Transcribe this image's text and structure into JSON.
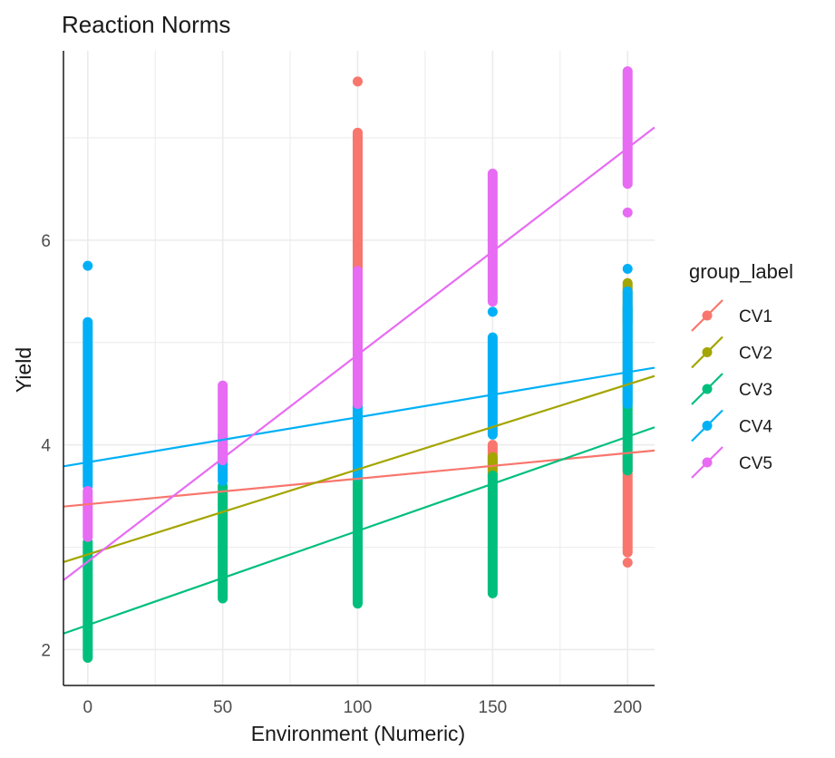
{
  "chart_data": {
    "type": "scatter",
    "title": "Reaction Norms",
    "xlabel": "Environment (Numeric)",
    "ylabel": "Yield",
    "xlim": [
      -9,
      210
    ],
    "ylim": [
      1.65,
      7.85
    ],
    "x_ticks": [
      0,
      50,
      100,
      150,
      200
    ],
    "y_ticks": [
      2,
      4,
      6
    ],
    "grid": true,
    "legend": {
      "title": "group_label",
      "position": "right"
    },
    "series": [
      {
        "name": "CV1",
        "color": "#F8766D",
        "points": [
          {
            "x": 100,
            "ymin": 4.3,
            "ymax": 7.05
          },
          {
            "x": 100,
            "ymin": 7.55,
            "ymax": 7.55
          },
          {
            "x": 150,
            "ymin": 3.8,
            "ymax": 4.0
          },
          {
            "x": 200,
            "ymin": 2.95,
            "ymax": 3.9
          },
          {
            "x": 200,
            "ymin": 2.85,
            "ymax": 2.85
          }
        ],
        "fit": {
          "intercept": 3.42,
          "slope": 0.0025
        }
      },
      {
        "name": "CV2",
        "color": "#A3A500",
        "points": [
          {
            "x": 150,
            "ymin": 3.7,
            "ymax": 3.88
          },
          {
            "x": 200,
            "ymin": 5.2,
            "ymax": 5.58
          }
        ],
        "fit": {
          "intercept": 2.93,
          "slope": 0.0083
        }
      },
      {
        "name": "CV3",
        "color": "#00BF7D",
        "points": [
          {
            "x": 0,
            "ymin": 1.92,
            "ymax": 3.05
          },
          {
            "x": 50,
            "ymin": 2.5,
            "ymax": 3.6
          },
          {
            "x": 100,
            "ymin": 2.45,
            "ymax": 3.7
          },
          {
            "x": 150,
            "ymin": 2.55,
            "ymax": 3.7
          },
          {
            "x": 200,
            "ymin": 3.75,
            "ymax": 5.35
          }
        ],
        "fit": {
          "intercept": 2.24,
          "slope": 0.0092
        }
      },
      {
        "name": "CV4",
        "color": "#00B0F6",
        "points": [
          {
            "x": 0,
            "ymin": 3.6,
            "ymax": 5.2
          },
          {
            "x": 0,
            "ymin": 5.75,
            "ymax": 5.75
          },
          {
            "x": 50,
            "ymin": 3.65,
            "ymax": 4.1
          },
          {
            "x": 100,
            "ymin": 3.7,
            "ymax": 4.55
          },
          {
            "x": 150,
            "ymin": 4.1,
            "ymax": 5.05
          },
          {
            "x": 150,
            "ymin": 5.3,
            "ymax": 5.3
          },
          {
            "x": 200,
            "ymin": 4.4,
            "ymax": 5.5
          },
          {
            "x": 200,
            "ymin": 5.72,
            "ymax": 5.72
          }
        ],
        "fit": {
          "intercept": 3.83,
          "slope": 0.0044
        }
      },
      {
        "name": "CV5",
        "color": "#E76BF3",
        "points": [
          {
            "x": 0,
            "ymin": 3.1,
            "ymax": 3.55
          },
          {
            "x": 50,
            "ymin": 3.85,
            "ymax": 4.58
          },
          {
            "x": 100,
            "ymin": 4.4,
            "ymax": 5.7
          },
          {
            "x": 150,
            "ymin": 5.4,
            "ymax": 6.65
          },
          {
            "x": 200,
            "ymin": 6.55,
            "ymax": 7.65
          },
          {
            "x": 200,
            "ymin": 6.27,
            "ymax": 6.27
          }
        ],
        "fit": {
          "intercept": 2.86,
          "slope": 0.0202
        }
      }
    ]
  }
}
